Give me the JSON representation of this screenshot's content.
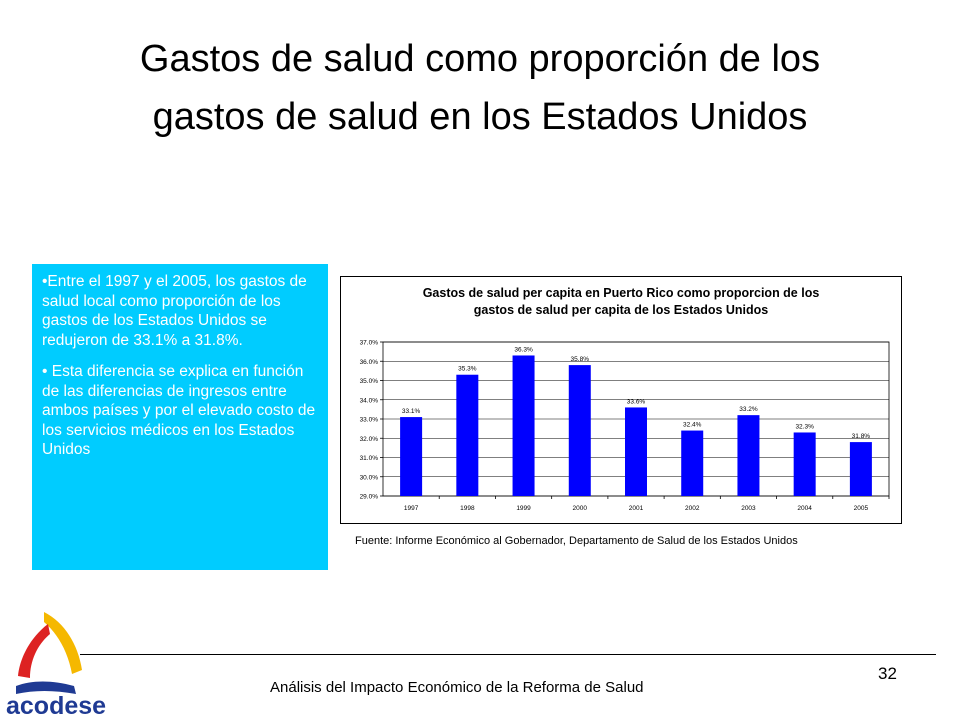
{
  "slide": {
    "title_line1": "Gastos de salud como proporción de los",
    "title_line2": "gastos de salud en los Estados Unidos",
    "page_number": "32",
    "footer": "Análisis del Impacto Económico de la Reforma de Salud",
    "logo_text": "acodese"
  },
  "info_box": {
    "bullet1": "•Entre el 1997 y el 2005, los gastos de salud local como proporción de los gastos de los Estados Unidos se redujeron de 33.1% a  31.8%.",
    "bullet2": "• Esta diferencia se explica en función de las diferencias de ingresos entre ambos países y por el elevado costo de los servicios médicos en los Estados Unidos"
  },
  "source": "Fuente: Informe Económico al Gobernador, Departamento de Salud de los Estados Unidos",
  "colors": {
    "bar": "#0000ff",
    "info_box": "#00ccff",
    "logo_red": "#dd2222",
    "logo_yellow": "#f5b800",
    "logo_blue": "#1f3a93"
  },
  "chart_data": {
    "type": "bar",
    "title_line1": "Gastos de salud per capita en Puerto Rico como proporcion de los",
    "title_line2": "gastos de salud per capita de los Estados Unidos",
    "categories": [
      "1997",
      "1998",
      "1999",
      "2000",
      "2001",
      "2002",
      "2003",
      "2004",
      "2005"
    ],
    "values": [
      33.1,
      35.3,
      36.3,
      35.8,
      33.6,
      32.4,
      33.2,
      32.3,
      31.8
    ],
    "data_labels": [
      "33.1%",
      "35.3%",
      "36.3%",
      "35.8%",
      "33.6%",
      "32.4%",
      "33.2%",
      "32.3%",
      "31.8%"
    ],
    "y_ticks": [
      "29.0%",
      "30.0%",
      "31.0%",
      "32.0%",
      "33.0%",
      "34.0%",
      "35.0%",
      "36.0%",
      "37.0%"
    ],
    "ylim": [
      29,
      37
    ],
    "grid": true,
    "legend": "none"
  }
}
